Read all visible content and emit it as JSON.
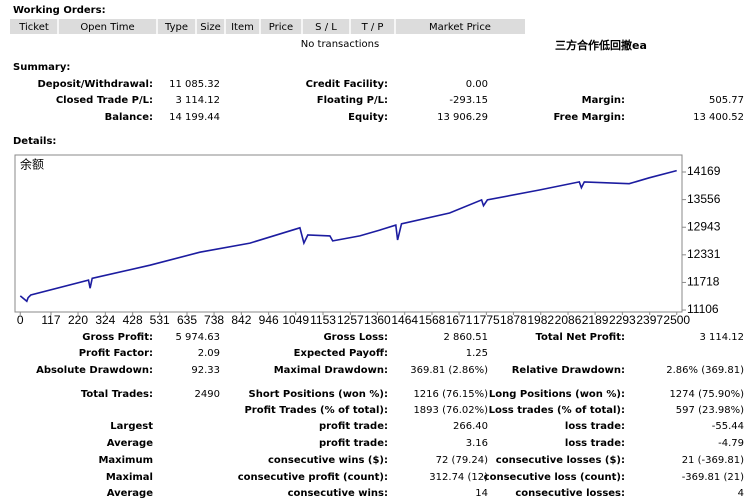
{
  "orders": {
    "heading": "Working Orders:",
    "columns": [
      "Ticket",
      "Open Time",
      "Type",
      "Size",
      "Item",
      "Price",
      "S / L",
      "T / P",
      "Market Price"
    ],
    "empty": "No transactions",
    "note": "三方合作低回撤ea"
  },
  "summary": {
    "heading": "Summary:",
    "rows": [
      [
        {
          "label": "Deposit/Withdrawal:",
          "value": "11 085.32"
        },
        {
          "label": "Credit Facility:",
          "value": "0.00"
        },
        null
      ],
      [
        {
          "label": "Closed Trade P/L:",
          "value": "3 114.12"
        },
        {
          "label": "Floating P/L:",
          "value": "-293.15"
        },
        {
          "label": "Margin:",
          "value": "505.77"
        }
      ],
      [
        {
          "label": "Balance:",
          "value": "14 199.44"
        },
        {
          "label": "Equity:",
          "value": "13 906.29"
        },
        {
          "label": "Free Margin:",
          "value": "13 400.52"
        }
      ]
    ]
  },
  "details": {
    "heading": "Details:",
    "rows": [
      [
        {
          "label": "Gross Profit:",
          "value": "5 974.63"
        },
        {
          "label": "Gross Loss:",
          "value": "2 860.51"
        },
        {
          "label": "Total Net Profit:",
          "value": "3 114.12"
        }
      ],
      [
        {
          "label": "Profit Factor:",
          "value": "2.09"
        },
        {
          "label": "Expected Payoff:",
          "value": "1.25"
        },
        null
      ],
      [
        {
          "label": "Absolute Drawdown:",
          "value": "92.33"
        },
        {
          "label": "Maximal Drawdown:",
          "value": "369.81 (2.86%)"
        },
        {
          "label": "Relative Drawdown:",
          "value": "2.86% (369.81)"
        }
      ],
      [
        {
          "label": "Total Trades:",
          "value": "2490"
        },
        {
          "label": "Short Positions (won %):",
          "value": "1216 (76.15%)"
        },
        {
          "label": "Long Positions (won %):",
          "value": "1274 (75.90%)"
        }
      ],
      [
        null,
        {
          "label": "Profit Trades (% of total):",
          "value": "1893 (76.02%)"
        },
        {
          "label": "Loss trades (% of total):",
          "value": "597 (23.98%)"
        }
      ],
      [
        {
          "label": "Largest"
        },
        {
          "label": "profit trade:",
          "value": "266.40"
        },
        {
          "label": "loss trade:",
          "value": "-55.44"
        }
      ],
      [
        {
          "label": "Average"
        },
        {
          "label": "profit trade:",
          "value": "3.16"
        },
        {
          "label": "loss trade:",
          "value": "-4.79"
        }
      ],
      [
        {
          "label": "Maximum"
        },
        {
          "label": "consecutive wins ($):",
          "value": "72 (79.24)"
        },
        {
          "label": "consecutive losses ($):",
          "value": "21 (-369.81)"
        }
      ],
      [
        {
          "label": "Maximal"
        },
        {
          "label": "consecutive profit (count):",
          "value": "312.74 (12)"
        },
        {
          "label": "consecutive loss (count):",
          "value": "-369.81 (21)"
        }
      ],
      [
        {
          "label": "Average"
        },
        {
          "label": "consecutive wins:",
          "value": "14"
        },
        {
          "label": "consecutive losses:",
          "value": "4"
        }
      ]
    ]
  },
  "chart_data": {
    "type": "line",
    "x": [
      0,
      25,
      30,
      40,
      260,
      266,
      274,
      494,
      684,
      875,
      1065,
      1080,
      1095,
      1179,
      1190,
      1293,
      1369,
      1430,
      1437,
      1452,
      1635,
      1757,
      1764,
      1779,
      1977,
      2129,
      2137,
      2148,
      2319,
      2395,
      2500
    ],
    "series": [
      {
        "name": "余额",
        "color": "#1c1ca0",
        "values": [
          11420,
          11300,
          11380,
          11440,
          11770,
          11590,
          11810,
          12100,
          12390,
          12590,
          12930,
          12590,
          12770,
          12750,
          12640,
          12750,
          12880,
          12990,
          12660,
          13020,
          13260,
          13550,
          13420,
          13550,
          13770,
          13950,
          13820,
          13950,
          13910,
          14040,
          14199
        ]
      }
    ],
    "xlim": [
      -20,
      2520
    ],
    "xticks": [
      0,
      117,
      220,
      324,
      428,
      531,
      635,
      738,
      842,
      946,
      1049,
      1153,
      1257,
      1360,
      1464,
      1568,
      1671,
      1775,
      1878,
      1982,
      2086,
      2189,
      2293,
      2397,
      2500
    ],
    "ylim": [
      11062,
      14546
    ],
    "yticks": [
      11106,
      11718,
      12331,
      12943,
      13556,
      14169
    ],
    "grid": false
  }
}
